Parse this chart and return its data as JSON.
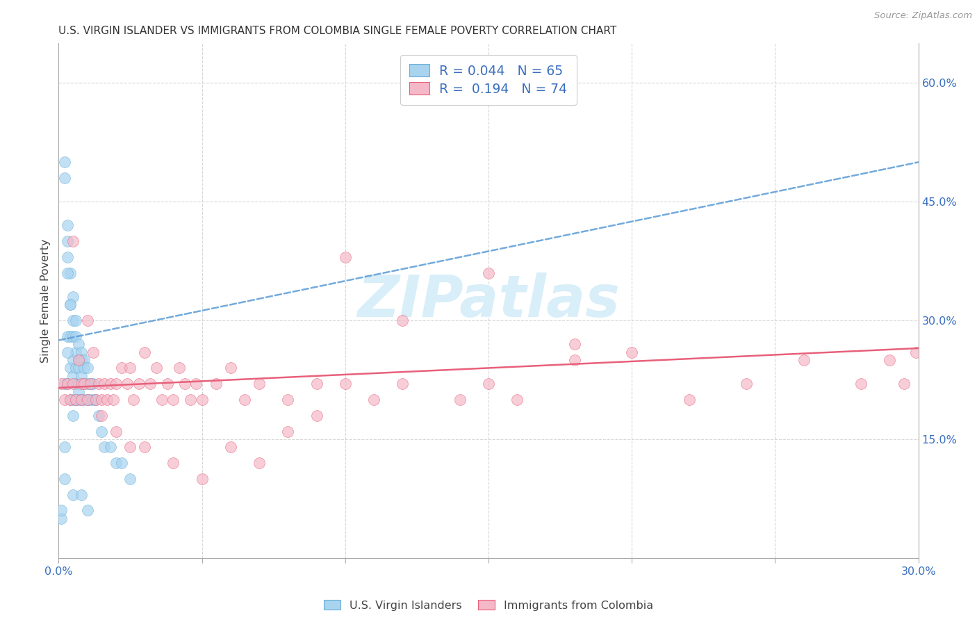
{
  "title": "U.S. VIRGIN ISLANDER VS IMMIGRANTS FROM COLOMBIA SINGLE FEMALE POVERTY CORRELATION CHART",
  "source": "Source: ZipAtlas.com",
  "ylabel": "Single Female Poverty",
  "xlim": [
    0.0,
    0.3
  ],
  "ylim": [
    0.0,
    0.65
  ],
  "x_tick_vals": [
    0.0,
    0.05,
    0.1,
    0.15,
    0.2,
    0.25,
    0.3
  ],
  "x_tick_labels": [
    "0.0%",
    "",
    "",
    "",
    "",
    "",
    "30.0%"
  ],
  "y_tick_vals_right": [
    0.15,
    0.3,
    0.45,
    0.6
  ],
  "y_tick_labels_right": [
    "15.0%",
    "30.0%",
    "45.0%",
    "60.0%"
  ],
  "legend_label1": "R = 0.044   N = 65",
  "legend_label2": "R =  0.194   N = 74",
  "color_blue_fill": "#a8d4f0",
  "color_blue_edge": "#6aaed6",
  "color_pink_fill": "#f4b8c8",
  "color_pink_edge": "#e8607a",
  "color_blue_line": "#5b9bd5",
  "color_pink_line": "#e8607a",
  "watermark_color": "#d8eef8",
  "grid_color": "#cccccc",
  "blue_x": [
    0.001,
    0.001,
    0.002,
    0.002,
    0.002,
    0.003,
    0.003,
    0.003,
    0.003,
    0.004,
    0.004,
    0.004,
    0.004,
    0.004,
    0.005,
    0.005,
    0.005,
    0.005,
    0.005,
    0.005,
    0.006,
    0.006,
    0.006,
    0.006,
    0.006,
    0.006,
    0.007,
    0.007,
    0.007,
    0.007,
    0.007,
    0.007,
    0.008,
    0.008,
    0.008,
    0.008,
    0.009,
    0.009,
    0.009,
    0.009,
    0.01,
    0.01,
    0.01,
    0.011,
    0.011,
    0.012,
    0.012,
    0.013,
    0.014,
    0.015,
    0.016,
    0.018,
    0.02,
    0.022,
    0.025,
    0.003,
    0.003,
    0.004,
    0.003,
    0.005,
    0.002,
    0.002,
    0.005,
    0.008,
    0.01
  ],
  "blue_y": [
    0.05,
    0.06,
    0.5,
    0.48,
    0.22,
    0.42,
    0.38,
    0.28,
    0.22,
    0.36,
    0.32,
    0.28,
    0.24,
    0.2,
    0.33,
    0.3,
    0.28,
    0.25,
    0.23,
    0.2,
    0.3,
    0.28,
    0.26,
    0.24,
    0.22,
    0.2,
    0.27,
    0.25,
    0.24,
    0.22,
    0.21,
    0.2,
    0.26,
    0.25,
    0.23,
    0.2,
    0.25,
    0.24,
    0.22,
    0.2,
    0.24,
    0.22,
    0.2,
    0.22,
    0.2,
    0.22,
    0.2,
    0.2,
    0.18,
    0.16,
    0.14,
    0.14,
    0.12,
    0.12,
    0.1,
    0.4,
    0.36,
    0.32,
    0.26,
    0.18,
    0.14,
    0.1,
    0.08,
    0.08,
    0.06
  ],
  "pink_x": [
    0.001,
    0.002,
    0.003,
    0.004,
    0.005,
    0.006,
    0.007,
    0.008,
    0.008,
    0.009,
    0.01,
    0.011,
    0.012,
    0.013,
    0.014,
    0.015,
    0.016,
    0.017,
    0.018,
    0.019,
    0.02,
    0.022,
    0.024,
    0.025,
    0.026,
    0.028,
    0.03,
    0.032,
    0.034,
    0.036,
    0.038,
    0.04,
    0.042,
    0.044,
    0.046,
    0.048,
    0.05,
    0.055,
    0.06,
    0.065,
    0.07,
    0.08,
    0.09,
    0.1,
    0.11,
    0.12,
    0.14,
    0.15,
    0.16,
    0.18,
    0.2,
    0.22,
    0.24,
    0.26,
    0.28,
    0.29,
    0.295,
    0.005,
    0.01,
    0.015,
    0.02,
    0.025,
    0.03,
    0.04,
    0.05,
    0.06,
    0.07,
    0.08,
    0.09,
    0.1,
    0.12,
    0.15,
    0.18,
    0.299
  ],
  "pink_y": [
    0.22,
    0.2,
    0.22,
    0.2,
    0.22,
    0.2,
    0.25,
    0.22,
    0.2,
    0.22,
    0.2,
    0.22,
    0.26,
    0.2,
    0.22,
    0.2,
    0.22,
    0.2,
    0.22,
    0.2,
    0.22,
    0.24,
    0.22,
    0.24,
    0.2,
    0.22,
    0.26,
    0.22,
    0.24,
    0.2,
    0.22,
    0.2,
    0.24,
    0.22,
    0.2,
    0.22,
    0.2,
    0.22,
    0.24,
    0.2,
    0.22,
    0.2,
    0.22,
    0.22,
    0.2,
    0.22,
    0.2,
    0.22,
    0.2,
    0.25,
    0.26,
    0.2,
    0.22,
    0.25,
    0.22,
    0.25,
    0.22,
    0.4,
    0.3,
    0.18,
    0.16,
    0.14,
    0.14,
    0.12,
    0.1,
    0.14,
    0.12,
    0.16,
    0.18,
    0.38,
    0.3,
    0.36,
    0.27,
    0.26
  ]
}
